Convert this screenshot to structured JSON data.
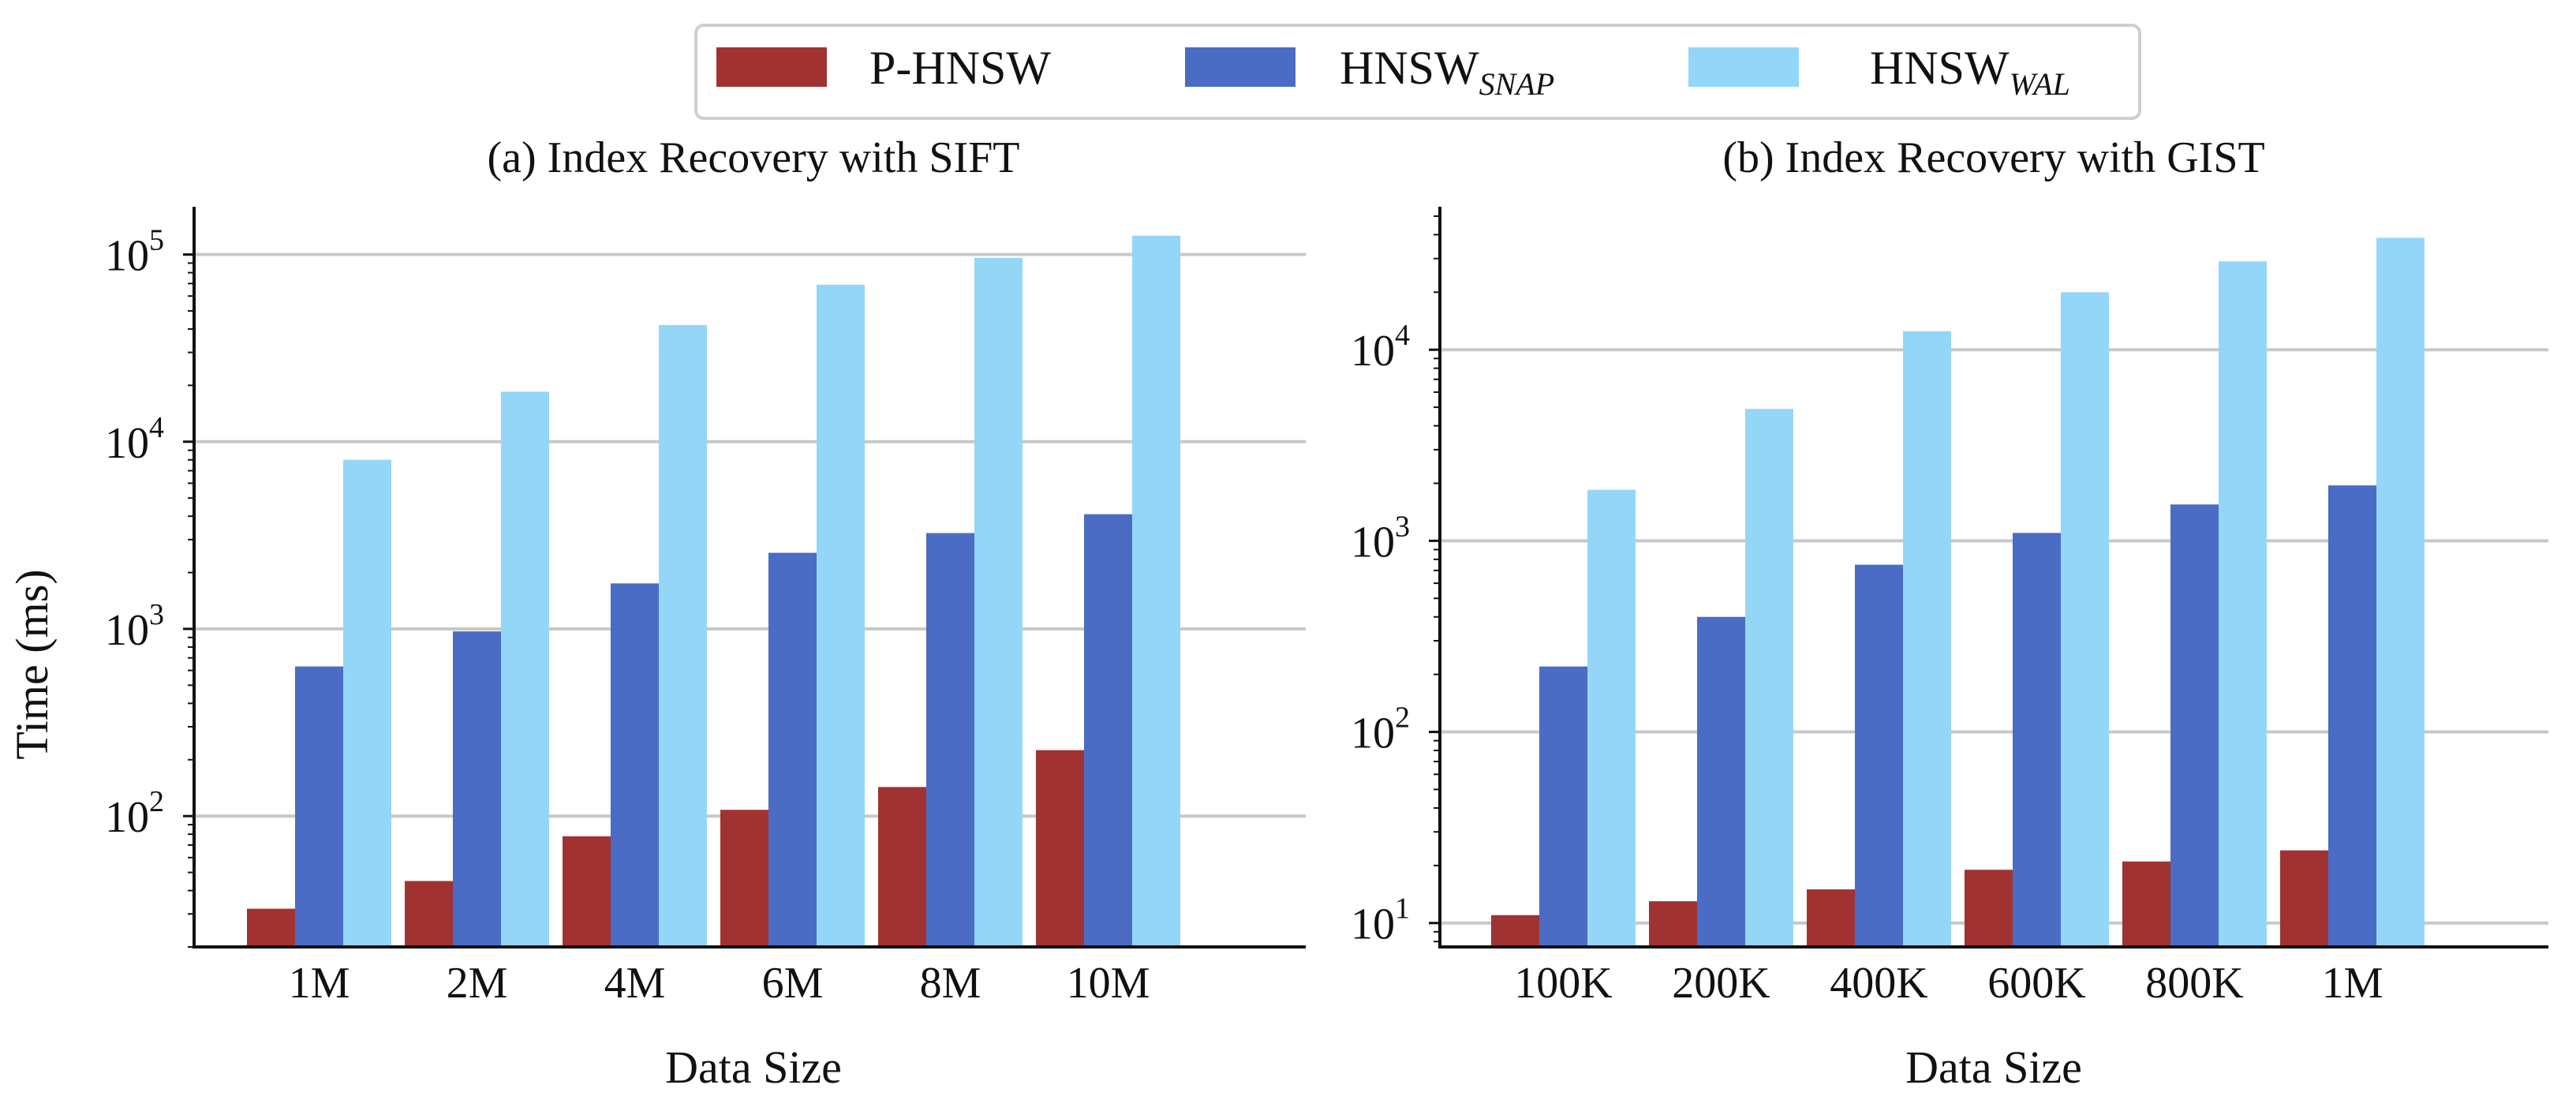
{
  "legend": {
    "items": [
      {
        "name": "P-HNSW",
        "label": "P-HNSW",
        "sub": "",
        "color": "#a13232"
      },
      {
        "name": "HNSW_SNAP",
        "label": "HNSW",
        "sub": "SNAP",
        "color": "#4a6cc4"
      },
      {
        "name": "HNSW_WAL",
        "label": "HNSW",
        "sub": "WAL",
        "color": "#94d6f7"
      }
    ]
  },
  "chart_data": [
    {
      "type": "bar",
      "title": "(a) Index Recovery with SIFT",
      "xlabel": "Data Size",
      "ylabel": "Time (ms)",
      "yscale": "log",
      "ylim": [
        20,
        180000
      ],
      "grid": "y-major",
      "categories": [
        "1M",
        "2M",
        "4M",
        "6M",
        "8M",
        "10M"
      ],
      "yticks": [
        {
          "value": 100,
          "base": "10",
          "exp": "2"
        },
        {
          "value": 1000,
          "base": "10",
          "exp": "3"
        },
        {
          "value": 10000,
          "base": "10",
          "exp": "4"
        },
        {
          "value": 100000,
          "base": "10",
          "exp": "5"
        }
      ],
      "series": [
        {
          "name": "P-HNSW",
          "values": [
            32,
            45,
            78,
            108,
            143,
            225
          ]
        },
        {
          "name": "HNSW_SNAP",
          "values": [
            630,
            970,
            1750,
            2550,
            3250,
            4100
          ]
        },
        {
          "name": "HNSW_WAL",
          "values": [
            8000,
            18500,
            42000,
            69000,
            96000,
            126000
          ]
        }
      ]
    },
    {
      "type": "bar",
      "title": "(b) Index Recovery with GIST",
      "xlabel": "Data Size",
      "ylabel": "",
      "yscale": "log",
      "ylim": [
        7.5,
        56000
      ],
      "grid": "y-major",
      "categories": [
        "100K",
        "200K",
        "400K",
        "600K",
        "800K",
        "1M"
      ],
      "yticks": [
        {
          "value": 10,
          "base": "10",
          "exp": "1"
        },
        {
          "value": 100,
          "base": "10",
          "exp": "2"
        },
        {
          "value": 1000,
          "base": "10",
          "exp": "3"
        },
        {
          "value": 10000,
          "base": "10",
          "exp": "4"
        }
      ],
      "series": [
        {
          "name": "P-HNSW",
          "values": [
            11,
            13,
            15,
            19,
            21,
            24
          ]
        },
        {
          "name": "HNSW_SNAP",
          "values": [
            220,
            400,
            750,
            1100,
            1550,
            1950
          ]
        },
        {
          "name": "HNSW_WAL",
          "values": [
            1850,
            4900,
            12500,
            20000,
            29000,
            38500
          ]
        }
      ]
    }
  ]
}
